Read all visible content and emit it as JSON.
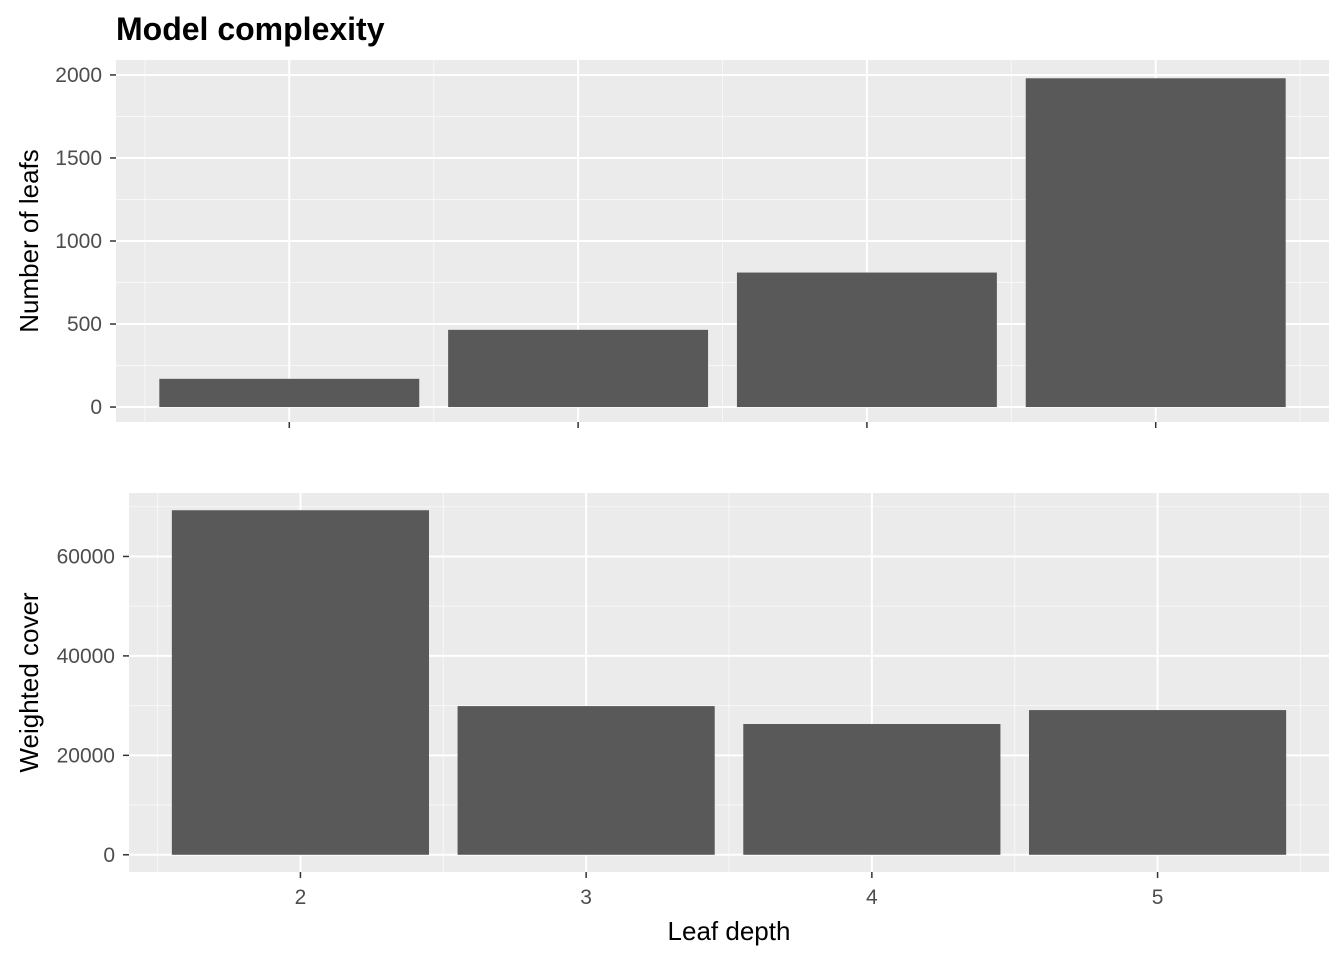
{
  "title": "Model complexity",
  "colors": {
    "panel_background": "#EBEBEB",
    "grid_major": "#FFFFFF",
    "bar_fill": "#595959",
    "tick_text": "#4D4D4D",
    "text": "#000000"
  },
  "chart_data": [
    {
      "type": "bar",
      "categories": [
        "2",
        "3",
        "4",
        "5"
      ],
      "values": [
        170,
        465,
        810,
        1980
      ],
      "ylabel": "Number of leafs",
      "xlabel": "",
      "ylim": [
        -90,
        2090
      ],
      "yticks": [
        0,
        500,
        1000,
        1500,
        2000
      ],
      "ytick_labels": [
        "0",
        "500",
        "1000",
        "1500",
        "2000"
      ],
      "xtick_labels_visible": false,
      "grid": true
    },
    {
      "type": "bar",
      "categories": [
        "2",
        "3",
        "4",
        "5"
      ],
      "values": [
        69300,
        29900,
        26300,
        29100
      ],
      "ylabel": "Weighted cover",
      "xlabel": "Leaf depth",
      "ylim": [
        -3465,
        72765
      ],
      "yticks": [
        0,
        20000,
        40000,
        60000
      ],
      "ytick_labels": [
        "0",
        "20000",
        "40000",
        "60000"
      ],
      "xtick_labels": [
        "2",
        "3",
        "4",
        "5"
      ],
      "xtick_labels_visible": true,
      "grid": true
    }
  ]
}
